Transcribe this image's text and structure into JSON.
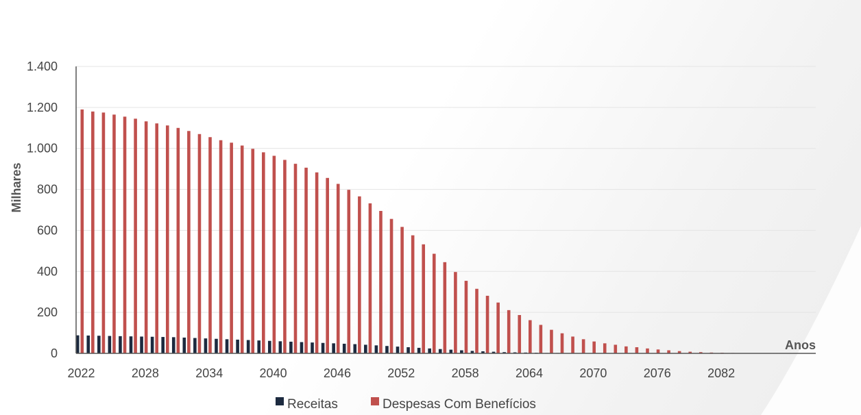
{
  "chart_data": {
    "type": "bar",
    "title": "",
    "xlabel": "Anos",
    "ylabel": "Milhares",
    "ylim": [
      0,
      1400
    ],
    "yticks": [
      0,
      200,
      400,
      600,
      800,
      1000,
      1200,
      1400
    ],
    "ytick_labels": [
      "0",
      "200",
      "400",
      "600",
      "800",
      "1.000",
      "1.200",
      "1.400"
    ],
    "x_start": 2022,
    "x_end": 2089,
    "xtick_labels": [
      "2022",
      "2028",
      "2034",
      "2040",
      "2046",
      "2052",
      "2058",
      "2064",
      "2070",
      "2076",
      "2082"
    ],
    "grid": true,
    "legend": "bottom",
    "series": [
      {
        "name": "Receitas",
        "color": "#1c2a3f",
        "values": [
          88,
          87,
          86,
          85,
          84,
          83,
          82,
          81,
          80,
          79,
          77,
          75,
          73,
          71,
          69,
          67,
          65,
          63,
          61,
          59,
          57,
          55,
          53,
          51,
          49,
          47,
          45,
          42,
          39,
          36,
          33,
          30,
          27,
          24,
          21,
          18,
          15,
          12,
          10,
          8,
          6,
          5,
          4,
          3,
          2,
          2,
          1,
          1,
          1,
          1,
          0,
          0,
          0,
          0,
          0,
          0,
          0,
          0,
          0,
          0,
          0,
          0,
          0,
          0,
          0,
          0,
          0,
          0
        ]
      },
      {
        "name": "Despesas Com Benefícios",
        "color": "#c0504d",
        "values": [
          1190,
          1180,
          1175,
          1165,
          1155,
          1145,
          1132,
          1122,
          1112,
          1100,
          1085,
          1070,
          1055,
          1040,
          1028,
          1014,
          998,
          981,
          964,
          944,
          925,
          906,
          883,
          856,
          827,
          798,
          766,
          732,
          695,
          656,
          617,
          576,
          532,
          486,
          445,
          397,
          354,
          315,
          281,
          248,
          211,
          187,
          162,
          139,
          115,
          98,
          82,
          69,
          58,
          49,
          42,
          34,
          30,
          24,
          19,
          15,
          11,
          8,
          6,
          4,
          3,
          2,
          1,
          1,
          1,
          0,
          0,
          0
        ]
      }
    ]
  }
}
